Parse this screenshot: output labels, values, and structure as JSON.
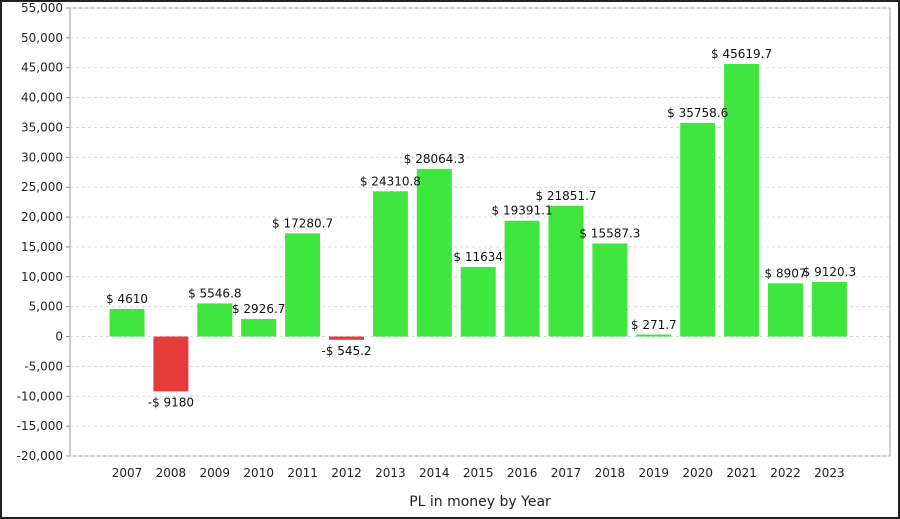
{
  "chart_data": {
    "type": "bar",
    "title": "",
    "xlabel": "PL in money by Year",
    "ylabel": "",
    "ylim": [
      -20000,
      55000
    ],
    "ytick_step": 5000,
    "grid": true,
    "legend": "none",
    "categories": [
      "2007",
      "2008",
      "2009",
      "2010",
      "2011",
      "2012",
      "2013",
      "2014",
      "2015",
      "2016",
      "2017",
      "2018",
      "2019",
      "2020",
      "2021",
      "2022",
      "2023"
    ],
    "values": [
      4610,
      -9180,
      5546.8,
      2926.7,
      17280.7,
      -545.2,
      24310.8,
      28064.3,
      11634,
      19391.1,
      21851.7,
      15587.3,
      271.7,
      35758.6,
      45619.7,
      8907,
      9120.3
    ],
    "data_labels": [
      "$ 4610",
      "-$ 9180",
      "$ 5546.8",
      "$ 2926.7",
      "$ 17280.7",
      "-$ 545.2",
      "$ 24310.8",
      "$ 28064.3",
      "$ 11634",
      "$ 19391.1",
      "$ 21851.7",
      "$ 15587.3",
      "$ 271.7",
      "$ 35758.6",
      "$ 45619.7",
      "$ 8907",
      "$ 9120.3"
    ],
    "colors": {
      "positive": "#3ee63e",
      "negative": "#e63b3b"
    }
  }
}
